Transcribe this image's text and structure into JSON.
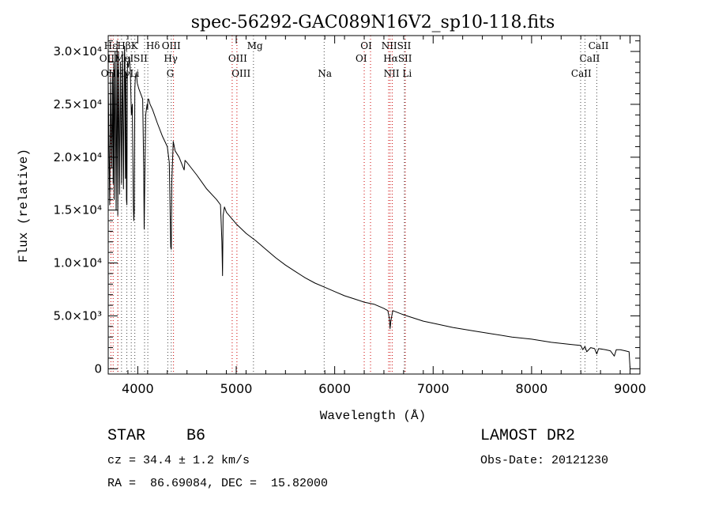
{
  "chart_data": {
    "type": "line",
    "title": "spec-56292-GAC089N16V2_sp10-118.fits",
    "xlabel": "Wavelength (Å)",
    "ylabel": "Flux (relative)",
    "xlim": [
      3700,
      9100
    ],
    "ylim": [
      -500,
      31500
    ],
    "x_ticks": [
      4000,
      5000,
      6000,
      7000,
      8000,
      9000
    ],
    "x_tick_labels": [
      "4000",
      "5000",
      "6000",
      "7000",
      "8000",
      "9000"
    ],
    "y_ticks": [
      0,
      5000,
      10000,
      15000,
      20000,
      25000,
      30000
    ],
    "y_tick_labels": [
      "0",
      "5.0×10³",
      "1.0×10⁴",
      "1.5×10⁴",
      "2.0×10⁴",
      "2.5×10⁴",
      "3.0×10⁴"
    ],
    "series": [
      {
        "x": [
          3700,
          3715,
          3725,
          3735,
          3745,
          3750,
          3755,
          3760,
          3770,
          3780,
          3790,
          3797,
          3805,
          3815,
          3825,
          3835,
          3845,
          3855,
          3865,
          3870,
          3875,
          3880,
          3885,
          3889,
          3895,
          3905,
          3915,
          3925,
          3935,
          3945,
          3955,
          3960,
          3965,
          3970,
          3975,
          3985,
          3995,
          4010,
          4030,
          4050,
          4060,
          4065,
          4080,
          4095,
          4100,
          4102,
          4110,
          4125,
          4150,
          4200,
          4250,
          4300,
          4320,
          4335,
          4340,
          4345,
          4360,
          4380,
          4420,
          4471,
          4480,
          4500,
          4600,
          4700,
          4800,
          4840,
          4855,
          4861,
          4867,
          4880,
          4900,
          5000,
          5100,
          5200,
          5300,
          5400,
          5500,
          5600,
          5700,
          5800,
          5900,
          6000,
          6100,
          6200,
          6300,
          6400,
          6500,
          6540,
          6555,
          6563,
          6570,
          6590,
          6700,
          6800,
          6900,
          7000,
          7200,
          7400,
          7600,
          7800,
          8000,
          8200,
          8400,
          8500,
          8520,
          8542,
          8560,
          8600,
          8640,
          8662,
          8680,
          8750,
          8800,
          8840,
          8860,
          8900,
          8950,
          8990,
          9000
        ],
        "y": [
          27000,
          15500,
          27500,
          19000,
          28000,
          17500,
          29000,
          16000,
          30000,
          15000,
          31000,
          14500,
          30000,
          16500,
          29000,
          17500,
          30000,
          17000,
          30500,
          29000,
          18000,
          28000,
          16000,
          15500,
          29000,
          28500,
          29500,
          28000,
          24000,
          25000,
          15500,
          14000,
          15000,
          26500,
          27500,
          28000,
          27000,
          26500,
          26000,
          25500,
          19000,
          13200,
          24000,
          25000,
          24500,
          25500,
          25500,
          25000,
          24500,
          23200,
          22000,
          21000,
          19500,
          11500,
          11300,
          17500,
          21500,
          20600,
          20000,
          18800,
          19700,
          19500,
          18300,
          17000,
          16000,
          15500,
          12000,
          8800,
          14500,
          15300,
          14800,
          13700,
          12800,
          12100,
          11300,
          10500,
          9800,
          9200,
          8600,
          8100,
          7700,
          7300,
          6900,
          6600,
          6300,
          6100,
          5700,
          5500,
          4800,
          3800,
          4500,
          5500,
          5100,
          4800,
          4500,
          4300,
          3900,
          3600,
          3300,
          3000,
          2800,
          2500,
          2300,
          2200,
          1800,
          2100,
          1600,
          2000,
          1900,
          1400,
          1900,
          1800,
          1700,
          1200,
          1800,
          1800,
          1700,
          1600,
          100
        ]
      }
    ],
    "line_markers": [
      {
        "label": "Hβ",
        "x": 3750
      },
      {
        "label": "Hε",
        "x": 3797
      },
      {
        "label": "K",
        "x": 3934
      },
      {
        "label": "Hδ",
        "x": 4102
      },
      {
        "label": "OII",
        "x": 3727
      },
      {
        "label": "OIII",
        "x": 3798
      },
      {
        "label": "He",
        "x": 3889
      },
      {
        "label": "ISII",
        "x": 4069
      },
      {
        "label": "Hγ",
        "x": 4340
      },
      {
        "label": "OIII",
        "x": 4363
      },
      {
        "label": "OIII",
        "x": 4959
      },
      {
        "label": "Mg",
        "x": 5175
      },
      {
        "label": "OIII",
        "x": 5007
      },
      {
        "label": "G",
        "x": 4305
      },
      {
        "label": "Hη",
        "x": 3835
      },
      {
        "label": "Li",
        "x": 3970
      },
      {
        "label": "Na",
        "x": 5893
      },
      {
        "label": "OI",
        "x": 6300
      },
      {
        "label": "OI",
        "x": 6364
      },
      {
        "label": "NII",
        "x": 6548
      },
      {
        "label": "Hα",
        "x": 6563
      },
      {
        "label": "NIISII",
        "x": 6584
      },
      {
        "label": "SII",
        "x": 6717
      },
      {
        "label": "Li",
        "x": 6708
      },
      {
        "label": "CaII",
        "x": 8498
      },
      {
        "label": "CaII",
        "x": 8542
      },
      {
        "label": "CaII",
        "x": 8662
      }
    ],
    "marker_labels": [
      {
        "text": "Hδ",
        "x": 4155,
        "row": 1
      },
      {
        "text": "OIII",
        "x": 4340,
        "row": 1
      },
      {
        "text": "Mg",
        "x": 5190,
        "row": 1
      },
      {
        "text": "OI",
        "x": 6320,
        "row": 1
      },
      {
        "text": "NIISII",
        "x": 6625,
        "row": 1
      },
      {
        "text": "CaII",
        "x": 8680,
        "row": 1
      },
      {
        "text": "HεHβK",
        "x": 3830,
        "row": 1
      },
      {
        "text": "OIIMeISII",
        "x": 3855,
        "row": 2
      },
      {
        "text": "Hγ",
        "x": 4335,
        "row": 2
      },
      {
        "text": "OIII",
        "x": 5015,
        "row": 2
      },
      {
        "text": "OI",
        "x": 6270,
        "row": 2
      },
      {
        "text": "HαSII",
        "x": 6640,
        "row": 2
      },
      {
        "text": "CaII",
        "x": 8590,
        "row": 2
      },
      {
        "text": "OIIHγLi",
        "x": 3820,
        "row": 3
      },
      {
        "text": "G",
        "x": 4330,
        "row": 3
      },
      {
        "text": "OIII",
        "x": 5050,
        "row": 3
      },
      {
        "text": "Na",
        "x": 5900,
        "row": 3
      },
      {
        "text": "NII Li",
        "x": 6640,
        "row": 3
      },
      {
        "text": "CaII",
        "x": 8505,
        "row": 3
      }
    ],
    "marker_colors": {
      "emission": "#cc0000",
      "absorption": "#444444"
    }
  },
  "info": {
    "object_class": "STAR",
    "subclass": "B6",
    "survey": "LAMOST DR2",
    "redshift": "cz = 34.4 ± 1.2 km/s",
    "obs_date": "Obs-Date: 20121230",
    "coords": "RA =  86.69084, DEC =  15.82000"
  }
}
